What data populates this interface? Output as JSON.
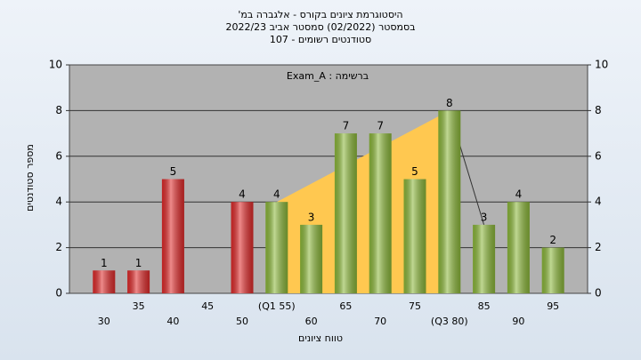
{
  "chart_data": {
    "type": "bar",
    "title": "היסטוגרמת ציונים בקורס - אלגברה במ'",
    "subtitle": "בסמסטר  (02/2022)  סמסטר אביב 2022/23",
    "subtitle2": "סטודנטים רשומים - 107",
    "annotation": "ברשימה : Exam_A",
    "x_label": "טווח ציונים",
    "y_label": "מספר סטודנטים",
    "categories": [
      "30",
      "35",
      "40",
      "45",
      "50",
      "(Q1 55)",
      "60",
      "65",
      "70",
      "75",
      "(Q3 80)",
      "85",
      "90",
      "95"
    ],
    "values": [
      1,
      1,
      5,
      0,
      4,
      4,
      3,
      7,
      7,
      5,
      8,
      3,
      4,
      2
    ],
    "colors": [
      "#e02a2a",
      "#e02a2a",
      "#e02a2a",
      "#e02a2a",
      "#e02a2a",
      "#8cb83a",
      "#8cb83a",
      "#8cb83a",
      "#8cb83a",
      "#8cb83a",
      "#8cb83a",
      "#8cb83a",
      "#8cb83a",
      "#8cb83a"
    ],
    "quartile_color": "#ffc850",
    "ylim": [
      0,
      10
    ],
    "yticks": [
      0,
      2,
      4,
      6,
      8,
      10
    ],
    "y2lim": [
      0,
      10
    ],
    "y2ticks": [
      0,
      2,
      4,
      6,
      8,
      10
    ],
    "grid": true
  }
}
